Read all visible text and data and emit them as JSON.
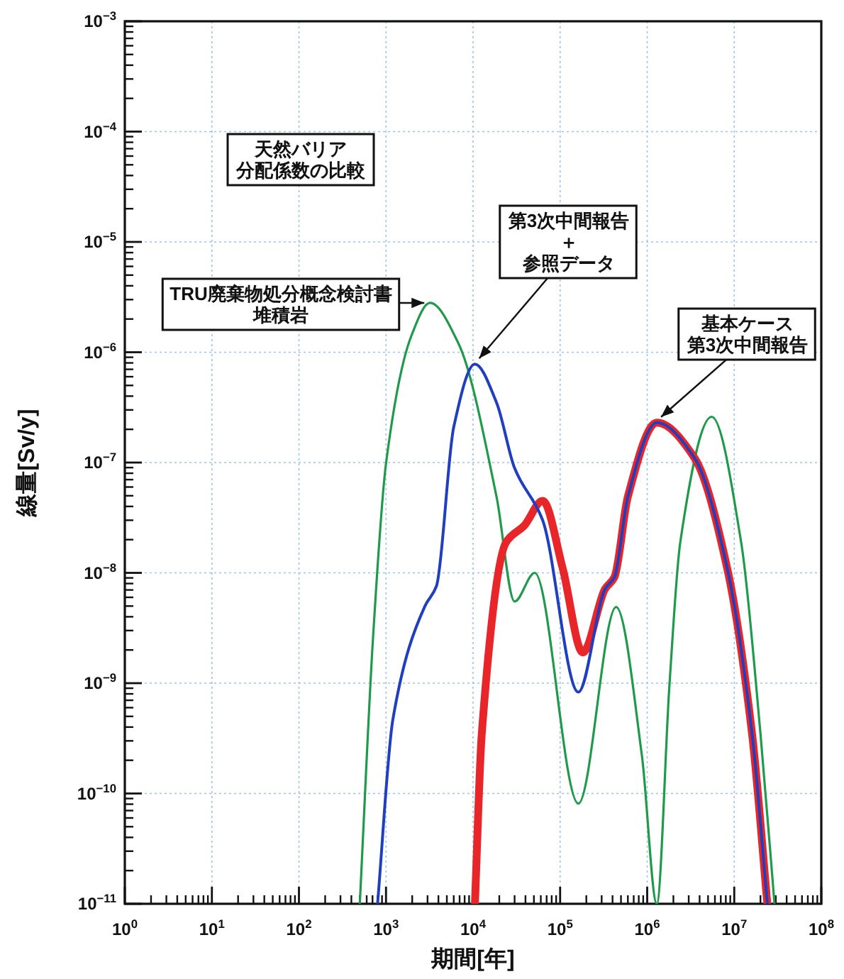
{
  "chart_data": {
    "type": "line",
    "title": "天然バリア分配係数の比較",
    "xlabel": "期間[年]",
    "ylabel": "線量[Sv/y]",
    "log": "xy",
    "grid": true,
    "xlim": [
      1,
      100000000.0
    ],
    "ylim": [
      1e-11,
      0.001
    ],
    "xticks": [
      {
        "value": 1,
        "label": "10$^{0}$"
      },
      {
        "value": 10,
        "label": "10$^{1}$"
      },
      {
        "value": 100,
        "label": "10$^{2}$"
      },
      {
        "value": 1000,
        "label": "10$^{3}$"
      },
      {
        "value": 10000,
        "label": "10$^{4}$"
      },
      {
        "value": 100000,
        "label": "10$^{5}$"
      },
      {
        "value": 1000000,
        "label": "10$^{6}$"
      },
      {
        "value": 10000000,
        "label": "10$^{7}$"
      },
      {
        "value": 100000000,
        "label": "10$^{8}$"
      }
    ],
    "yticks": [
      {
        "value": 1e-11,
        "label": "10$^{−11}$"
      },
      {
        "value": 1e-10,
        "label": "10$^{−10}$"
      },
      {
        "value": 1e-09,
        "label": "10$^{−9}$"
      },
      {
        "value": 1e-08,
        "label": "10$^{−8}$"
      },
      {
        "value": 1e-07,
        "label": "10$^{−7}$"
      },
      {
        "value": 1e-06,
        "label": "10$^{−6}$"
      },
      {
        "value": 1e-05,
        "label": "10$^{−5}$"
      },
      {
        "value": 0.0001,
        "label": "10$^{−4}$"
      },
      {
        "value": 0.001,
        "label": "10$^{−3}$"
      }
    ],
    "series": [
      {
        "name": "TRU廃棄物処分概念検討書堆積岩",
        "color": "#1e9a4a",
        "x": [
          500,
          710,
          1000,
          1950,
          3200,
          6800,
          18600,
          30000,
          51000,
          162000,
          440000,
          870000,
          1290000,
          1800000,
          2400000,
          5500000,
          12000000,
          20000000,
          29000000
        ],
        "values": [
          1e-11,
          2.6e-09,
          9.8e-08,
          1.4e-06,
          2.8e-06,
          1.2e-06,
          4.9e-08,
          5.5e-09,
          1e-08,
          8.1e-11,
          4.9e-09,
          2.2e-10,
          1e-11,
          9.5e-10,
          1.9e-08,
          2.6e-07,
          1.9e-08,
          3.5e-10,
          1e-11
        ]
      },
      {
        "name": "基本ケース第3次中間報告",
        "color": "#e8262a",
        "x": [
          10500,
          12600,
          24000,
          39000,
          63000,
          107000,
          182000,
          330000,
          420000,
          600000,
          1290000,
          3500000,
          8300000,
          16000000,
          24000000
        ],
        "values": [
          1e-11,
          3.5e-10,
          1.9e-08,
          2.7e-08,
          4.5e-08,
          1.1e-08,
          1.9e-09,
          7.2e-09,
          9.1e-09,
          4.9e-08,
          2.3e-07,
          1.1e-07,
          1.1e-08,
          3.5e-10,
          1e-11
        ]
      },
      {
        "name": "第3次中間報告＋参照データ",
        "color": "#1f3fbf",
        "x": [
          800,
          1200,
          2800,
          3800,
          6000,
          10500,
          18600,
          30000,
          63000,
          162000,
          330000,
          420000,
          600000,
          1290000,
          3500000,
          8300000,
          16000000,
          24000000
        ],
        "values": [
          1e-11,
          4.7e-10,
          5e-09,
          7.6e-09,
          2.1e-07,
          7.8e-07,
          3.5e-07,
          8.9e-08,
          3e-08,
          8.3e-10,
          7.2e-09,
          9.1e-09,
          4.9e-08,
          2.3e-07,
          1.1e-07,
          1.1e-08,
          3.5e-10,
          1e-11
        ]
      }
    ]
  }
}
